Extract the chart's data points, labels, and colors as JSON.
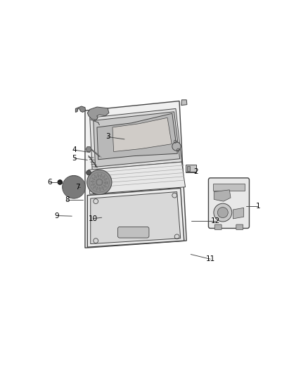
{
  "bg_color": "#ffffff",
  "line_color": "#444444",
  "label_color": "#000000",
  "figsize": [
    4.38,
    5.33
  ],
  "dpi": 100,
  "labels_info": [
    [
      1,
      0.92,
      0.43,
      0.87,
      0.43
    ],
    [
      2,
      0.66,
      0.575,
      0.62,
      0.575
    ],
    [
      3,
      0.29,
      0.72,
      0.36,
      0.71
    ],
    [
      4,
      0.15,
      0.665,
      0.215,
      0.655
    ],
    [
      5,
      0.15,
      0.63,
      0.205,
      0.623
    ],
    [
      6,
      0.048,
      0.53,
      0.09,
      0.53
    ],
    [
      7,
      0.165,
      0.51,
      0.175,
      0.51
    ],
    [
      8,
      0.12,
      0.455,
      0.185,
      0.455
    ],
    [
      9,
      0.075,
      0.39,
      0.14,
      0.388
    ],
    [
      10,
      0.23,
      0.378,
      0.265,
      0.382
    ],
    [
      11,
      0.72,
      0.208,
      0.638,
      0.228
    ],
    [
      12,
      0.74,
      0.368,
      0.64,
      0.368
    ]
  ]
}
